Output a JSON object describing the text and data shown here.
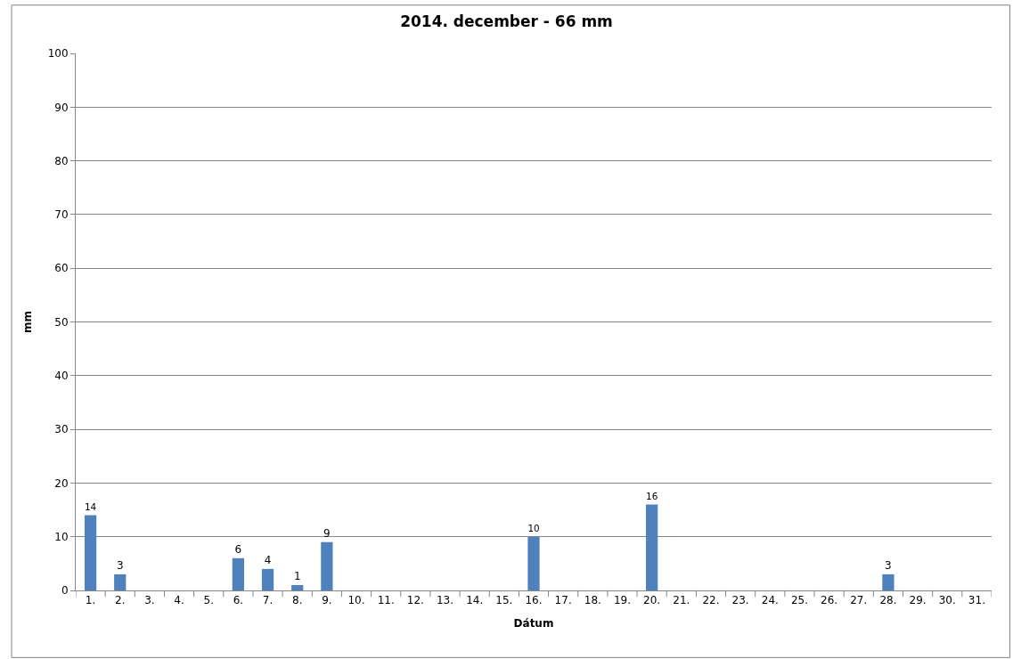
{
  "chart_data": {
    "type": "bar",
    "title": "2014. december - 66 mm",
    "xlabel": "Dátum",
    "ylabel": "mm",
    "categories": [
      "1.",
      "2.",
      "3.",
      "4.",
      "5.",
      "6.",
      "7.",
      "8.",
      "9.",
      "10.",
      "11.",
      "12.",
      "13.",
      "14.",
      "15.",
      "16.",
      "17.",
      "18.",
      "19.",
      "20.",
      "21.",
      "22.",
      "23.",
      "24.",
      "25.",
      "26.",
      "27.",
      "28.",
      "29.",
      "30.",
      "31."
    ],
    "values": [
      14,
      3,
      0,
      0,
      0,
      6,
      4,
      1,
      9,
      0,
      0,
      0,
      0,
      0,
      0,
      10,
      0,
      0,
      0,
      16,
      0,
      0,
      0,
      0,
      0,
      0,
      0,
      3,
      0,
      0,
      0
    ],
    "value_labels": [
      "14",
      "3",
      null,
      null,
      null,
      "6",
      "4",
      "1",
      "9",
      null,
      null,
      null,
      null,
      null,
      null,
      "10",
      null,
      null,
      null,
      "16",
      null,
      null,
      null,
      null,
      null,
      null,
      null,
      "3",
      null,
      null,
      null
    ],
    "color": "#4f81bd",
    "ylim": [
      0,
      100
    ],
    "yticks": [
      0,
      10,
      20,
      30,
      40,
      50,
      60,
      70,
      80,
      90,
      100
    ],
    "grid": "y",
    "legend": false
  }
}
